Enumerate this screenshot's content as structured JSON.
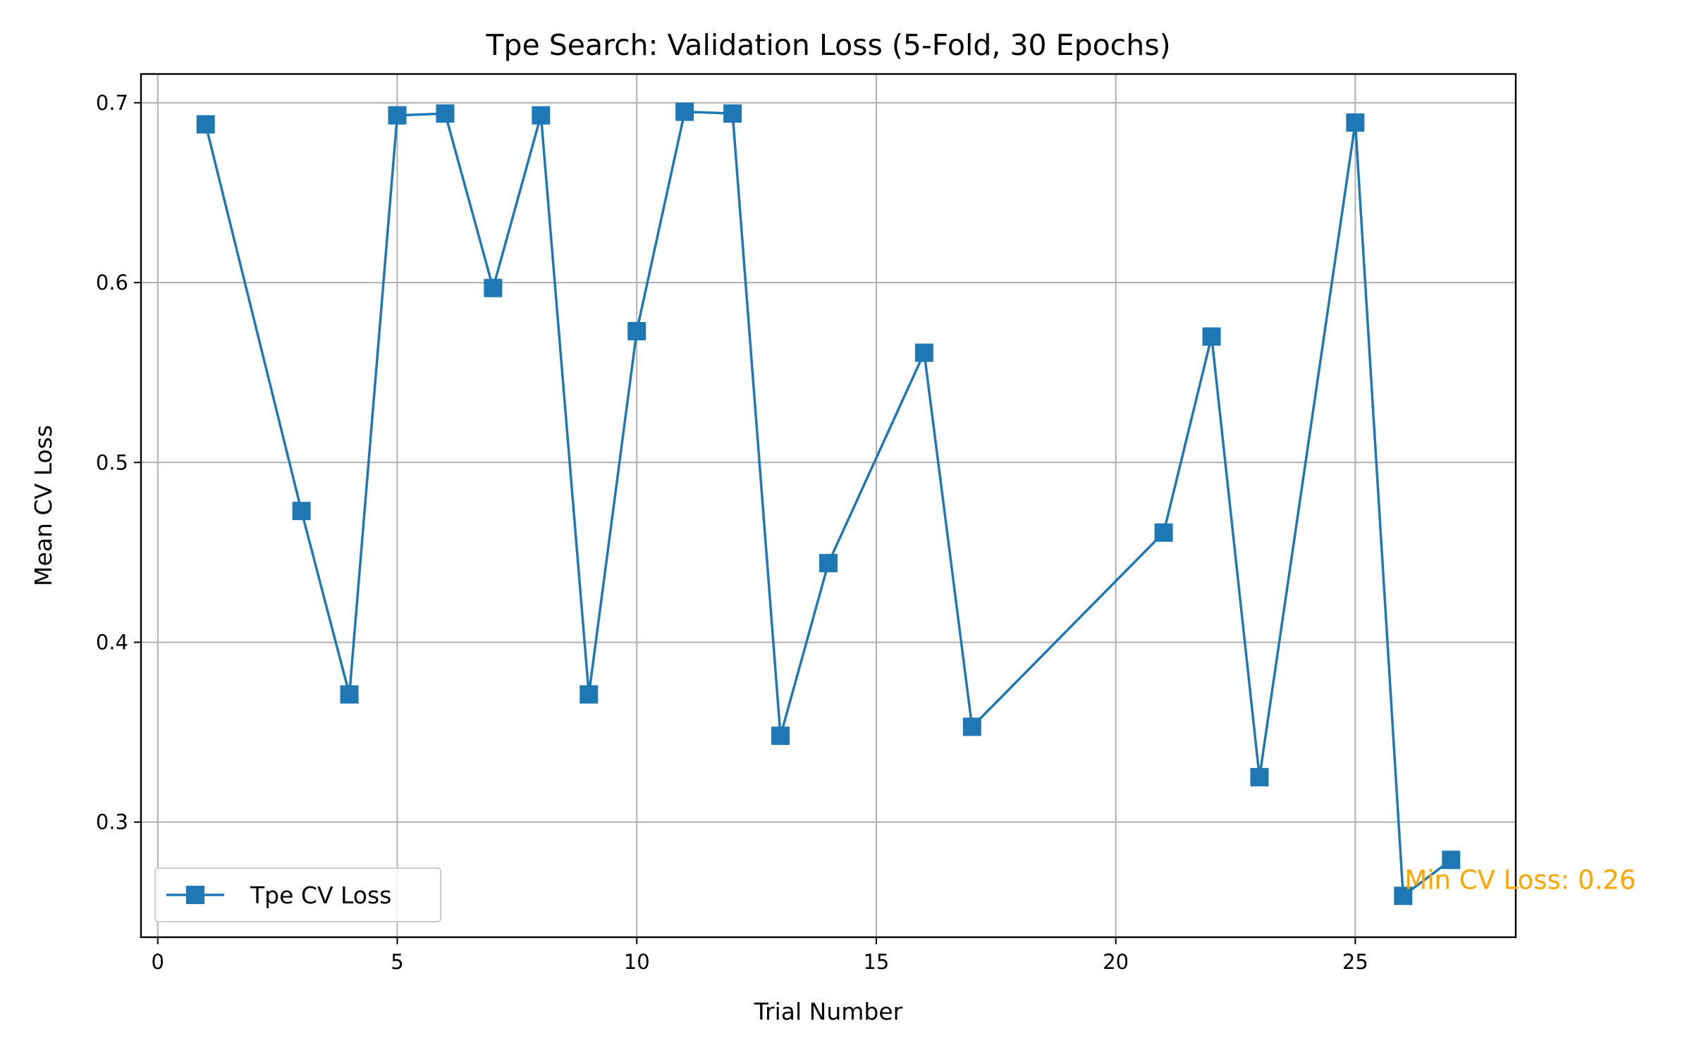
{
  "chart_data": {
    "type": "line",
    "title": "Tpe Search: Validation Loss (5-Fold, 30 Epochs)",
    "xlabel": "Trial Number",
    "ylabel": "Mean CV Loss",
    "xlim": [
      -0.35,
      28.35
    ],
    "ylim": [
      0.236,
      0.716
    ],
    "xticks": [
      0,
      5,
      10,
      15,
      20,
      25
    ],
    "xtick_labels": [
      "0",
      "5",
      "10",
      "15",
      "20",
      "25"
    ],
    "yticks": [
      0.3,
      0.4,
      0.5,
      0.6,
      0.7
    ],
    "ytick_labels": [
      "0.3",
      "0.4",
      "0.5",
      "0.6",
      "0.7"
    ],
    "grid": true,
    "legend_position": "lower-left",
    "series": [
      {
        "name": "Tpe CV Loss",
        "color": "#1f77b4",
        "marker": "square",
        "x": [
          1,
          3,
          4,
          5,
          6,
          7,
          8,
          9,
          10,
          11,
          12,
          13,
          14,
          16,
          17,
          21,
          22,
          23,
          25,
          26,
          27
        ],
        "y": [
          0.688,
          0.473,
          0.371,
          0.693,
          0.694,
          0.597,
          0.693,
          0.371,
          0.573,
          0.695,
          0.694,
          0.348,
          0.444,
          0.561,
          0.353,
          0.461,
          0.57,
          0.325,
          0.689,
          0.259,
          0.279
        ]
      }
    ],
    "annotations": [
      {
        "text": "Min CV Loss: 0.26",
        "x": 26,
        "y": 0.259,
        "color": "#ffa500"
      }
    ]
  }
}
